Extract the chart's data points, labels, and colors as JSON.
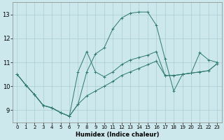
{
  "xlabel": "Humidex (Indice chaleur)",
  "bg_color": "#cde8ec",
  "grid_color": "#aacdd3",
  "line_color": "#2d7a6d",
  "xlim": [
    -0.5,
    23.5
  ],
  "ylim": [
    8.5,
    13.5
  ],
  "yticks": [
    9,
    10,
    11,
    12,
    13
  ],
  "xticks": [
    0,
    1,
    2,
    3,
    4,
    5,
    6,
    7,
    8,
    9,
    10,
    11,
    12,
    13,
    14,
    15,
    16,
    17,
    18,
    19,
    20,
    21,
    22,
    23
  ],
  "line1_x": [
    0,
    1,
    2,
    3,
    4,
    5,
    6,
    7,
    8,
    9,
    10,
    11,
    12,
    13,
    14,
    15,
    16,
    17,
    18,
    19,
    20,
    21,
    22,
    23
  ],
  "line1_y": [
    10.5,
    10.05,
    9.65,
    9.2,
    9.1,
    8.9,
    8.75,
    9.25,
    9.6,
    9.8,
    10.0,
    10.2,
    10.45,
    10.6,
    10.75,
    10.9,
    11.05,
    10.45,
    10.45,
    10.5,
    10.55,
    10.6,
    10.65,
    10.95
  ],
  "line2_x": [
    0,
    1,
    2,
    3,
    4,
    5,
    6,
    7,
    8,
    9,
    10,
    11,
    12,
    13,
    14,
    15,
    16,
    17,
    18,
    19,
    20,
    21,
    22,
    23
  ],
  "line2_y": [
    10.5,
    10.05,
    9.65,
    9.2,
    9.1,
    8.9,
    8.75,
    10.6,
    11.45,
    10.6,
    10.4,
    10.6,
    10.9,
    11.1,
    11.2,
    11.3,
    11.45,
    10.45,
    10.45,
    10.5,
    10.55,
    10.6,
    10.65,
    10.95
  ],
  "line3_x": [
    0,
    1,
    2,
    3,
    4,
    5,
    6,
    7,
    8,
    9,
    10,
    11,
    12,
    13,
    14,
    15,
    16,
    17,
    18,
    19,
    20,
    21,
    22,
    23
  ],
  "line3_y": [
    10.5,
    10.05,
    9.65,
    9.2,
    9.1,
    8.9,
    8.75,
    9.25,
    10.6,
    11.35,
    11.6,
    12.4,
    12.85,
    13.05,
    13.1,
    13.1,
    12.55,
    11.15,
    9.8,
    10.5,
    10.55,
    11.4,
    11.1,
    11.0
  ]
}
